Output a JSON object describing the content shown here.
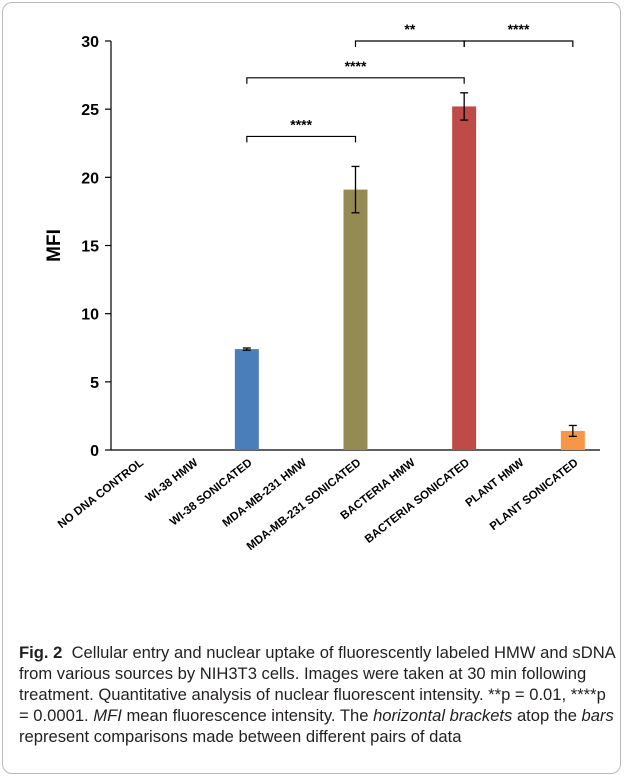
{
  "chart_data": {
    "type": "bar",
    "ylabel": "MFI",
    "ylim": [
      0,
      30
    ],
    "yticks": [
      0,
      5,
      10,
      15,
      20,
      25,
      30
    ],
    "categories": [
      "NO DNA CONTROL",
      "WI-38 HMW",
      "WI-38 SONICATED",
      "MDA-MB-231  HMW",
      "MDA-MB-231 SONICATED",
      "BACTERIA HMW",
      "BACTERIA SONICATED",
      "PLANT HMW",
      "PLANT SONICATED"
    ],
    "values": [
      0,
      0,
      7.4,
      0,
      19.1,
      0,
      25.2,
      0,
      1.4
    ],
    "errors": [
      0,
      0,
      0.08,
      0,
      1.7,
      0,
      1.0,
      0,
      0.4
    ],
    "colors": [
      "#4a7ebb",
      "#4a7ebb",
      "#4a7ebb",
      "#948a54",
      "#948a54",
      "#be4b48",
      "#be4b48",
      "#f79646",
      "#f79646"
    ],
    "brackets": [
      {
        "from": 2,
        "to": 4,
        "label": "****",
        "level": 23.0
      },
      {
        "from": 2,
        "to": 6,
        "label": "****",
        "level": 27.3
      },
      {
        "from": 4,
        "to": 6,
        "label": "**",
        "level": 30.0
      },
      {
        "from": 6,
        "to": 8,
        "label": "****",
        "level": 30.0
      }
    ],
    "grid": false,
    "legend": "none"
  },
  "caption": {
    "figure_label": "Fig. 2",
    "text_1": "Cellular entry and nuclear uptake of fluorescently labeled HMW and sDNA from various sources by NIH3T3 cells. Images were taken at 30 min following treatment. Quantitative analysis of nuclear fluorescent intensity. **p = 0.01, ****p = 0.0001. ",
    "abbr": "MFI",
    "text_2": " mean fluorescence intensity. The ",
    "em_1": "horizontal brackets",
    "text_3": " atop the ",
    "em_2": "bars",
    "text_4": " represent comparisons made between different pairs of data"
  }
}
